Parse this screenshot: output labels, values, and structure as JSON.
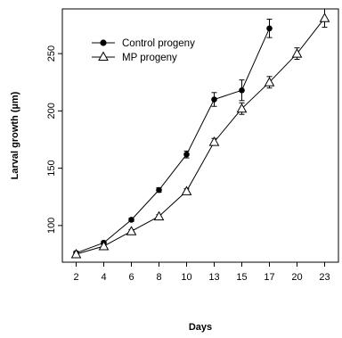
{
  "chart_data": {
    "type": "line",
    "xlabel": "Days",
    "ylabel": "Larval growth (µm)",
    "x": [
      2,
      4,
      6,
      8,
      10,
      13,
      15,
      17,
      20,
      23
    ],
    "x_tick_labels": [
      "2",
      "4",
      "6",
      "8",
      "10",
      "13",
      "15",
      "17",
      "20",
      "23"
    ],
    "y_ticks": [
      100,
      150,
      200,
      250
    ],
    "ylim": [
      68,
      289
    ],
    "grid": false,
    "legend_position": "top-left",
    "series": [
      {
        "name": "Control progeny",
        "marker": "filled-circle",
        "color": "#000000",
        "x": [
          2,
          4,
          6,
          8,
          10,
          13,
          15,
          17
        ],
        "values": [
          76,
          85,
          105,
          131,
          162,
          210,
          218,
          272
        ],
        "errors": [
          1.5,
          1.5,
          1.5,
          2,
          3,
          6,
          9,
          8
        ]
      },
      {
        "name": "MP progeny",
        "marker": "open-triangle",
        "color": "#000000",
        "x": [
          2,
          4,
          6,
          8,
          10,
          13,
          15,
          17,
          20,
          23
        ],
        "values": [
          75,
          82,
          95,
          108,
          130,
          173,
          202,
          225,
          250,
          281
        ],
        "errors": [
          1.5,
          1.5,
          1.5,
          1.5,
          2,
          3,
          5,
          5,
          5,
          8
        ]
      }
    ]
  }
}
